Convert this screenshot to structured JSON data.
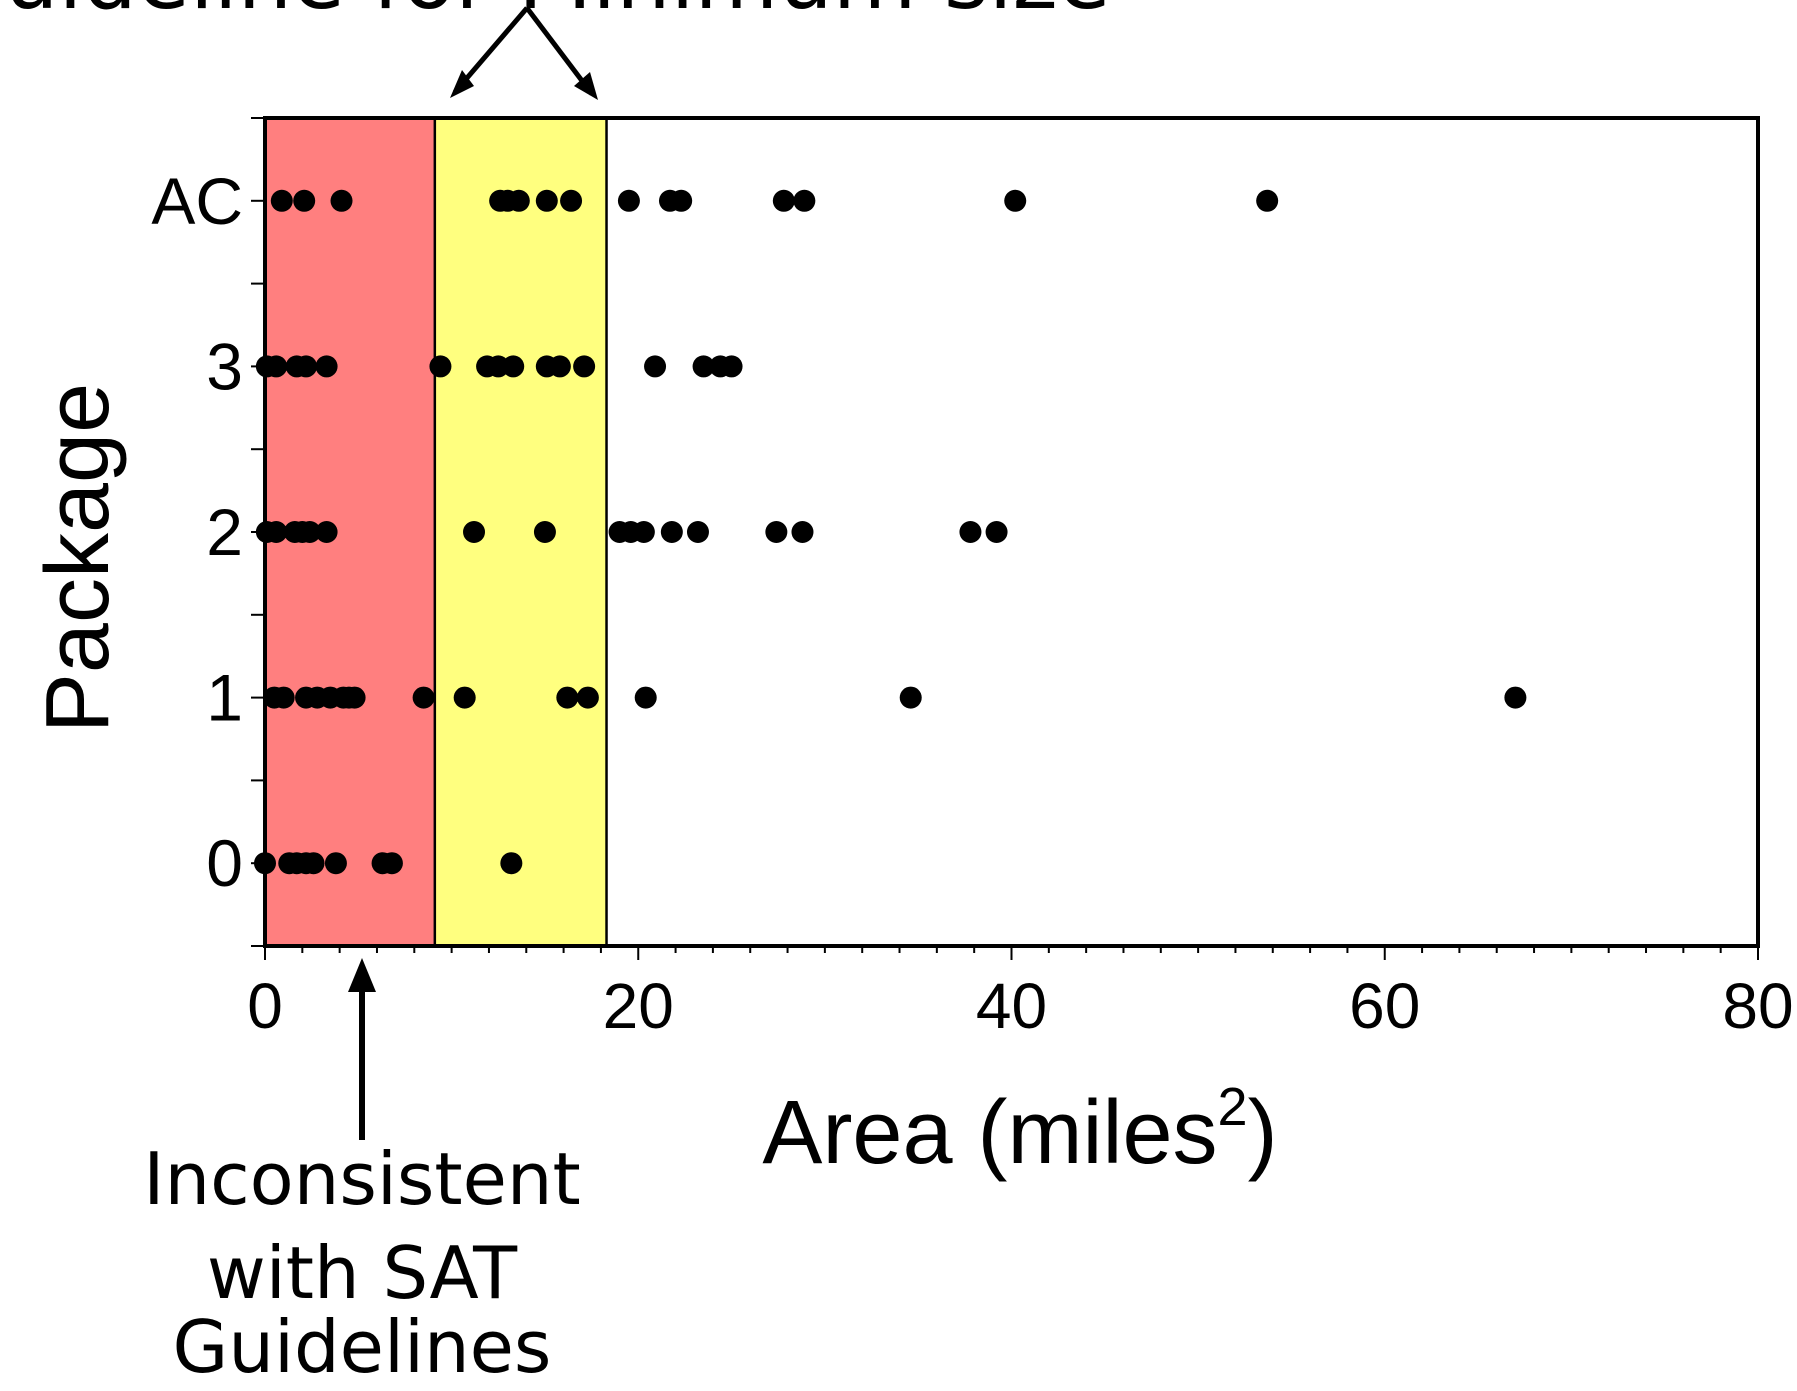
{
  "top_caption_partial": "guideline for Minimum size",
  "annotation_bottom": [
    "Inconsistent",
    "with SAT",
    "Guidelines"
  ],
  "chart_data": {
    "type": "scatter",
    "xlabel": "Area (miles",
    "xlabel_superscript": "2",
    "xlabel_close": ")",
    "ylabel": "Package",
    "xlim": [
      0,
      80
    ],
    "x_ticks": [
      "0",
      "20",
      "40",
      "60",
      "80"
    ],
    "y_categories": [
      "0",
      "1",
      "2",
      "3",
      "AC"
    ],
    "grid": false,
    "bands": [
      {
        "from": 0,
        "to": 9.1,
        "color": "#ff7f7f"
      },
      {
        "from": 9.1,
        "to": 18.3,
        "color": "#ffff7f"
      }
    ],
    "series": [
      {
        "category": "AC",
        "x": [
          0.9,
          2.1,
          4.1,
          12.6,
          13.0,
          13.6,
          15.1,
          16.4,
          19.5,
          21.7,
          22.3,
          27.8,
          28.9,
          40.2,
          53.7
        ]
      },
      {
        "category": "3",
        "x": [
          0.1,
          0.6,
          1.7,
          2.2,
          3.3,
          9.4,
          11.9,
          12.5,
          13.3,
          15.1,
          15.8,
          17.1,
          20.9,
          23.5,
          24.4,
          25.0
        ]
      },
      {
        "category": "2",
        "x": [
          0.1,
          0.6,
          1.6,
          2.0,
          2.4,
          3.3,
          11.2,
          15.0,
          19.0,
          19.6,
          20.3,
          21.8,
          23.2,
          27.4,
          28.8,
          37.8,
          39.2
        ]
      },
      {
        "category": "1",
        "x": [
          0.5,
          1.0,
          2.2,
          2.8,
          3.5,
          4.2,
          4.5,
          4.8,
          8.5,
          10.7,
          16.2,
          17.3,
          20.4,
          34.6,
          67.0
        ]
      },
      {
        "category": "0",
        "x": [
          0.0,
          1.3,
          1.7,
          2.2,
          2.6,
          3.8,
          6.3,
          6.8,
          13.2
        ]
      }
    ]
  }
}
